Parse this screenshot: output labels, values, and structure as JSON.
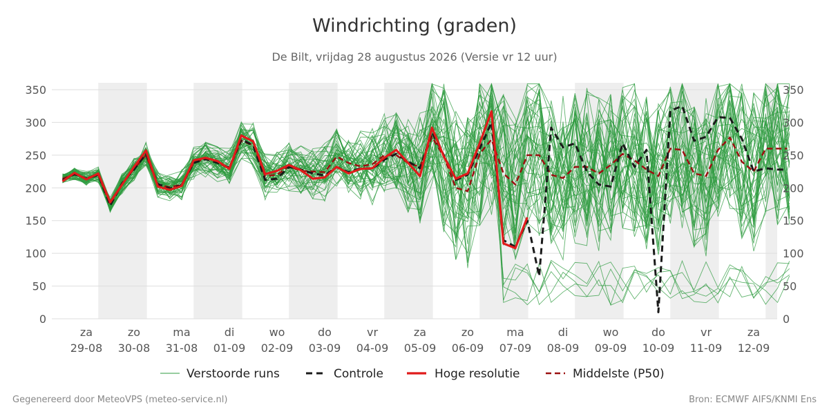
{
  "header": {
    "title": "Windrichting (graden)",
    "subtitle": "De Bilt, vrijdag 28 augustus 2026 (Versie vr 12 uur)"
  },
  "footer": {
    "left": "Gegenereerd door MeteoVPS (meteo-service.nl)",
    "right": "Bron: ECMWF AIFS/KNMI Ens"
  },
  "chart_data": {
    "type": "line",
    "title": "Windrichting (graden)",
    "subtitle": "De Bilt, vrijdag 28 augustus 2026 (Versie vr 12 uur)",
    "ylim": [
      0,
      360
    ],
    "yticks": [
      0,
      50,
      100,
      150,
      200,
      250,
      300,
      350
    ],
    "x_range_days": [
      0,
      15.2
    ],
    "x_ticks": [
      {
        "day": 0.5,
        "weekday": "za",
        "date": "29-08"
      },
      {
        "day": 1.5,
        "weekday": "zo",
        "date": "30-08"
      },
      {
        "day": 2.5,
        "weekday": "ma",
        "date": "31-08"
      },
      {
        "day": 3.5,
        "weekday": "di",
        "date": "01-09"
      },
      {
        "day": 4.5,
        "weekday": "wo",
        "date": "02-09"
      },
      {
        "day": 5.5,
        "weekday": "do",
        "date": "03-09"
      },
      {
        "day": 6.5,
        "weekday": "vr",
        "date": "04-09"
      },
      {
        "day": 7.5,
        "weekday": "za",
        "date": "05-09"
      },
      {
        "day": 8.5,
        "weekday": "zo",
        "date": "06-09"
      },
      {
        "day": 9.5,
        "weekday": "ma",
        "date": "07-09"
      },
      {
        "day": 10.5,
        "weekday": "di",
        "date": "08-09"
      },
      {
        "day": 11.5,
        "weekday": "wo",
        "date": "09-09"
      },
      {
        "day": 12.5,
        "weekday": "do",
        "date": "10-09"
      },
      {
        "day": 13.5,
        "weekday": "vr",
        "date": "11-09"
      },
      {
        "day": 14.5,
        "weekday": "za",
        "date": "12-09"
      }
    ],
    "shaded_days": [
      [
        0.75,
        1.77
      ],
      [
        2.75,
        3.77
      ],
      [
        4.75,
        5.77
      ],
      [
        6.75,
        7.77
      ],
      [
        8.75,
        9.77
      ],
      [
        10.75,
        11.77
      ],
      [
        12.75,
        13.77
      ],
      [
        14.75,
        15.2
      ]
    ],
    "grid": true,
    "legend_position": "bottom",
    "colors": {
      "ensemble": "#2e9b3f",
      "controle": "#1a1a1a",
      "hoge_resolutie": "#e01b1b",
      "p50": "#9b1010",
      "shade": "#eeeeee",
      "grid": "#dddddd"
    },
    "series": [
      {
        "name": "Hoge resolutie",
        "style": "solid",
        "x": [
          0.0,
          0.25,
          0.5,
          0.75,
          1.0,
          1.25,
          1.5,
          1.75,
          2.0,
          2.25,
          2.5,
          2.75,
          3.0,
          3.25,
          3.5,
          3.75,
          4.0,
          4.25,
          4.5,
          4.75,
          5.0,
          5.25,
          5.5,
          5.75,
          6.0,
          6.25,
          6.5,
          6.75,
          7.0,
          7.25,
          7.5,
          7.75,
          8.0,
          8.25,
          8.5,
          8.75,
          9.0,
          9.25,
          9.5,
          9.75,
          10.0
        ],
        "y": [
          210,
          223,
          213,
          222,
          178,
          205,
          232,
          257,
          202,
          197,
          203,
          242,
          246,
          241,
          229,
          280,
          271,
          221,
          226,
          235,
          227,
          214,
          216,
          232,
          222,
          229,
          230,
          246,
          258,
          238,
          218,
          292,
          248,
          214,
          222,
          268,
          317,
          115,
          108,
          155,
          null
        ]
      },
      {
        "name": "Controle",
        "style": "dashed",
        "x": [
          0.0,
          0.25,
          0.5,
          0.75,
          1.0,
          1.25,
          1.5,
          1.75,
          2.0,
          2.25,
          2.5,
          2.75,
          3.0,
          3.25,
          3.5,
          3.75,
          4.0,
          4.25,
          4.5,
          4.75,
          5.0,
          5.25,
          5.5,
          5.75,
          6.0,
          6.25,
          6.5,
          6.75,
          7.0,
          7.25,
          7.5,
          7.75,
          8.0,
          8.25,
          8.5,
          8.75,
          9.0,
          9.25,
          9.5,
          9.75,
          10.0,
          10.25,
          10.5,
          10.75,
          11.0,
          11.25,
          11.5,
          11.75,
          12.0,
          12.25,
          12.5,
          12.75,
          13.0,
          13.25,
          13.5,
          13.75,
          14.0,
          14.25,
          14.5,
          14.75,
          15.0,
          15.2
        ],
        "y": [
          212,
          221,
          214,
          220,
          173,
          207,
          228,
          252,
          206,
          199,
          204,
          238,
          244,
          238,
          231,
          274,
          265,
          212,
          214,
          232,
          228,
          222,
          219,
          232,
          224,
          230,
          229,
          243,
          252,
          240,
          230,
          285,
          250,
          212,
          220,
          260,
          300,
          120,
          110,
          150,
          65,
          292,
          262,
          268,
          225,
          205,
          202,
          268,
          232,
          258,
          10,
          318,
          325,
          272,
          278,
          308,
          307,
          275,
          225,
          230,
          228,
          228
        ]
      },
      {
        "name": "Middelste (P50)",
        "style": "dashed",
        "x": [
          0.0,
          0.25,
          0.5,
          0.75,
          1.0,
          1.25,
          1.5,
          1.75,
          2.0,
          2.25,
          2.5,
          2.75,
          3.0,
          3.25,
          3.5,
          3.75,
          4.0,
          4.25,
          4.5,
          4.75,
          5.0,
          5.25,
          5.5,
          5.75,
          6.0,
          6.25,
          6.5,
          6.75,
          7.0,
          7.25,
          7.5,
          7.75,
          8.0,
          8.25,
          8.5,
          8.75,
          9.0,
          9.25,
          9.5,
          9.75,
          10.0,
          10.25,
          10.5,
          10.75,
          11.0,
          11.25,
          11.5,
          11.75,
          12.0,
          12.25,
          12.5,
          12.75,
          13.0,
          13.25,
          13.5,
          13.75,
          14.0,
          14.25,
          14.5,
          14.75,
          15.0,
          15.2
        ],
        "y": [
          214,
          221,
          215,
          220,
          174,
          206,
          229,
          250,
          204,
          201,
          205,
          238,
          245,
          239,
          229,
          272,
          265,
          218,
          220,
          233,
          226,
          225,
          224,
          248,
          238,
          233,
          236,
          250,
          250,
          238,
          232,
          278,
          248,
          200,
          195,
          252,
          274,
          222,
          205,
          250,
          250,
          220,
          215,
          232,
          232,
          222,
          235,
          252,
          242,
          228,
          218,
          260,
          258,
          222,
          218,
          258,
          277,
          240,
          225,
          260,
          260,
          260
        ]
      }
    ],
    "ensemble": {
      "name": "Verstoorde runs",
      "members": 50,
      "median_y": [
        214,
        221,
        215,
        220,
        174,
        206,
        229,
        250,
        204,
        201,
        205,
        238,
        245,
        239,
        229,
        272,
        265,
        218,
        220,
        233,
        226,
        225,
        224,
        248,
        238,
        233,
        236,
        250,
        250,
        238,
        232,
        278,
        248,
        200,
        195,
        252,
        274,
        222,
        205,
        250,
        250,
        220,
        215,
        232,
        232,
        222,
        235,
        252,
        242,
        228,
        218,
        260,
        258,
        222,
        218,
        258,
        277,
        240,
        225,
        260,
        260,
        260
      ]
    },
    "legend": [
      "Verstoorde runs",
      "Controle",
      "Hoge resolutie",
      "Middelste (P50)"
    ]
  }
}
